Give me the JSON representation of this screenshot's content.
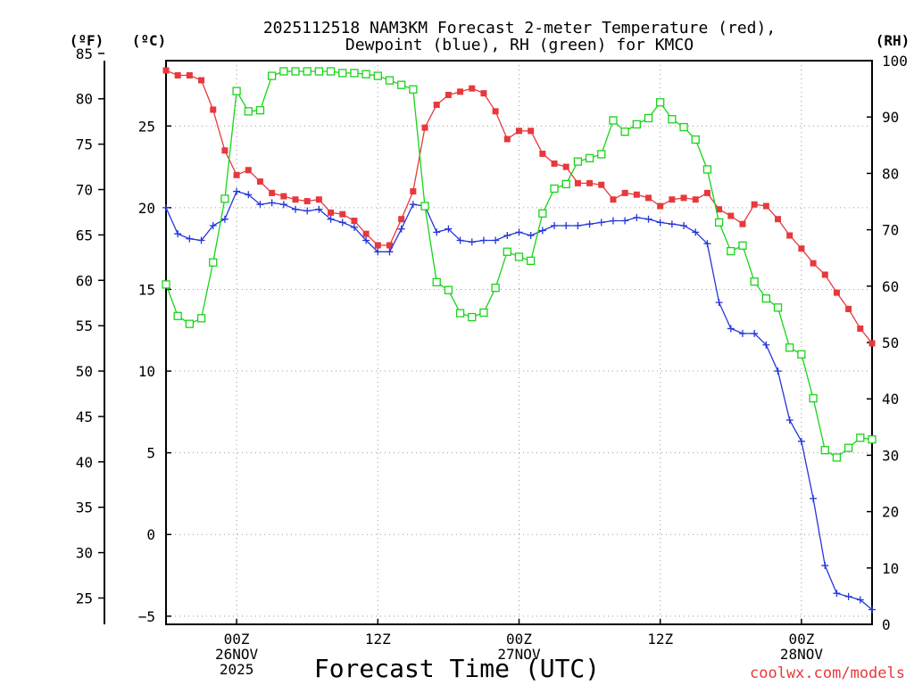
{
  "chart_data": {
    "type": "line",
    "title_line1": "2025112518 NAM3KM Forecast 2-meter Temperature (red),",
    "title_line2": "Dewpoint (blue), RH (green) for KMCO",
    "xlabel": "Forecast Time (UTC)",
    "credit": "coolwx.com/models",
    "unit_labels": {
      "fahrenheit": "(ºF)",
      "celsius": "(ºC)",
      "rh": "(RH)"
    },
    "x_axis": {
      "units": "forecast hour",
      "range": [
        0,
        60
      ],
      "ticks": [
        {
          "hour": 6,
          "lines": [
            "00Z",
            "26NOV",
            "2025"
          ]
        },
        {
          "hour": 18,
          "lines": [
            "12Z"
          ]
        },
        {
          "hour": 30,
          "lines": [
            "00Z",
            "27NOV"
          ]
        },
        {
          "hour": 42,
          "lines": [
            "12Z"
          ]
        },
        {
          "hour": 54,
          "lines": [
            "00Z",
            "28NOV"
          ]
        }
      ]
    },
    "y_axis_celsius": {
      "range": [
        -5.5,
        29
      ],
      "ticks": [
        -5,
        0,
        5,
        10,
        15,
        20,
        25
      ]
    },
    "y_axis_fahrenheit": {
      "ticks": [
        25,
        30,
        35,
        40,
        45,
        50,
        55,
        60,
        65,
        70,
        75,
        80,
        85
      ]
    },
    "y_axis_rh": {
      "range": [
        0,
        100
      ],
      "ticks": [
        0,
        10,
        20,
        30,
        40,
        50,
        60,
        70,
        80,
        90,
        100
      ]
    },
    "series": [
      {
        "name": "2-meter Temperature",
        "units": "C",
        "color": "#e8383d",
        "marker": "filled-square",
        "x": [
          0,
          1,
          2,
          3,
          4,
          5,
          6,
          7,
          8,
          9,
          10,
          11,
          12,
          13,
          14,
          15,
          16,
          17,
          18,
          19,
          20,
          21,
          22,
          23,
          24,
          25,
          26,
          27,
          28,
          29,
          30,
          31,
          32,
          33,
          34,
          35,
          36,
          37,
          38,
          39,
          40,
          41,
          42,
          43,
          44,
          45,
          46,
          47,
          48,
          49,
          50,
          51,
          52,
          53,
          54,
          55,
          56,
          57,
          58,
          59,
          60
        ],
        "values": [
          28.4,
          28.1,
          28.1,
          27.8,
          26.0,
          23.5,
          22.0,
          22.3,
          21.6,
          20.9,
          20.7,
          20.5,
          20.4,
          20.5,
          19.7,
          19.6,
          19.2,
          18.4,
          17.7,
          17.7,
          19.3,
          21.0,
          24.9,
          26.3,
          26.9,
          27.1,
          27.3,
          27.0,
          25.9,
          24.2,
          24.7,
          24.7,
          23.3,
          22.7,
          22.5,
          21.5,
          21.5,
          21.4,
          20.5,
          20.9,
          20.8,
          20.6,
          20.1,
          20.5,
          20.6,
          20.5,
          20.9,
          19.9,
          19.5,
          19.0,
          20.2,
          20.1,
          19.3,
          18.3,
          17.5,
          16.6,
          15.9,
          14.8,
          13.8,
          12.6,
          11.7
        ]
      },
      {
        "name": "Dewpoint",
        "units": "C",
        "color": "#2436d8",
        "marker": "plus",
        "x": [
          0,
          1,
          2,
          3,
          4,
          5,
          6,
          7,
          8,
          9,
          10,
          11,
          12,
          13,
          14,
          15,
          16,
          17,
          18,
          19,
          20,
          21,
          22,
          23,
          24,
          25,
          26,
          27,
          28,
          29,
          30,
          31,
          32,
          33,
          34,
          35,
          36,
          37,
          38,
          39,
          40,
          41,
          42,
          43,
          44,
          45,
          46,
          47,
          48,
          49,
          50,
          51,
          52,
          53,
          54,
          55,
          56,
          57,
          58,
          59,
          60
        ],
        "values": [
          20.0,
          18.4,
          18.1,
          18.0,
          18.9,
          19.3,
          21.0,
          20.8,
          20.2,
          20.3,
          20.2,
          19.9,
          19.8,
          19.9,
          19.3,
          19.1,
          18.8,
          18.0,
          17.3,
          17.3,
          18.7,
          20.2,
          20.1,
          18.5,
          18.7,
          18.0,
          17.9,
          18.0,
          18.0,
          18.3,
          18.5,
          18.3,
          18.6,
          18.9,
          18.9,
          18.9,
          19.0,
          19.1,
          19.2,
          19.2,
          19.4,
          19.3,
          19.1,
          19.0,
          18.9,
          18.5,
          17.8,
          14.2,
          12.6,
          12.3,
          12.3,
          11.6,
          10.0,
          7.0,
          5.7,
          2.2,
          -1.9,
          -3.6,
          -3.8,
          -4.0,
          -4.6
        ]
      },
      {
        "name": "RH",
        "units": "%",
        "color": "#18d418",
        "marker": "open-square",
        "x": [
          0,
          1,
          2,
          3,
          4,
          5,
          6,
          7,
          8,
          9,
          10,
          11,
          12,
          13,
          14,
          15,
          16,
          17,
          18,
          19,
          20,
          21,
          22,
          23,
          24,
          25,
          26,
          27,
          28,
          29,
          30,
          31,
          32,
          33,
          34,
          35,
          36,
          37,
          38,
          39,
          40,
          41,
          42,
          43,
          44,
          45,
          46,
          47,
          48,
          49,
          50,
          51,
          52,
          53,
          54,
          55,
          56,
          57,
          58,
          59,
          60
        ],
        "values": [
          60.3,
          54.7,
          53.3,
          54.3,
          64.2,
          75.5,
          94.6,
          91.0,
          91.2,
          97.3,
          98.1,
          98.1,
          98.1,
          98.1,
          98.1,
          97.8,
          97.8,
          97.6,
          97.3,
          96.5,
          95.7,
          94.9,
          74.2,
          60.7,
          59.3,
          55.2,
          54.5,
          55.3,
          59.7,
          66.1,
          65.2,
          64.5,
          72.9,
          77.3,
          78.1,
          82.1,
          82.7,
          83.4,
          89.4,
          87.4,
          88.7,
          89.8,
          92.6,
          89.6,
          88.2,
          86.0,
          80.7,
          71.3,
          66.2,
          67.2,
          60.8,
          57.8,
          56.2,
          49.1,
          47.9,
          40.1,
          30.9,
          29.6,
          31.3,
          33.1,
          32.8
        ]
      }
    ]
  }
}
